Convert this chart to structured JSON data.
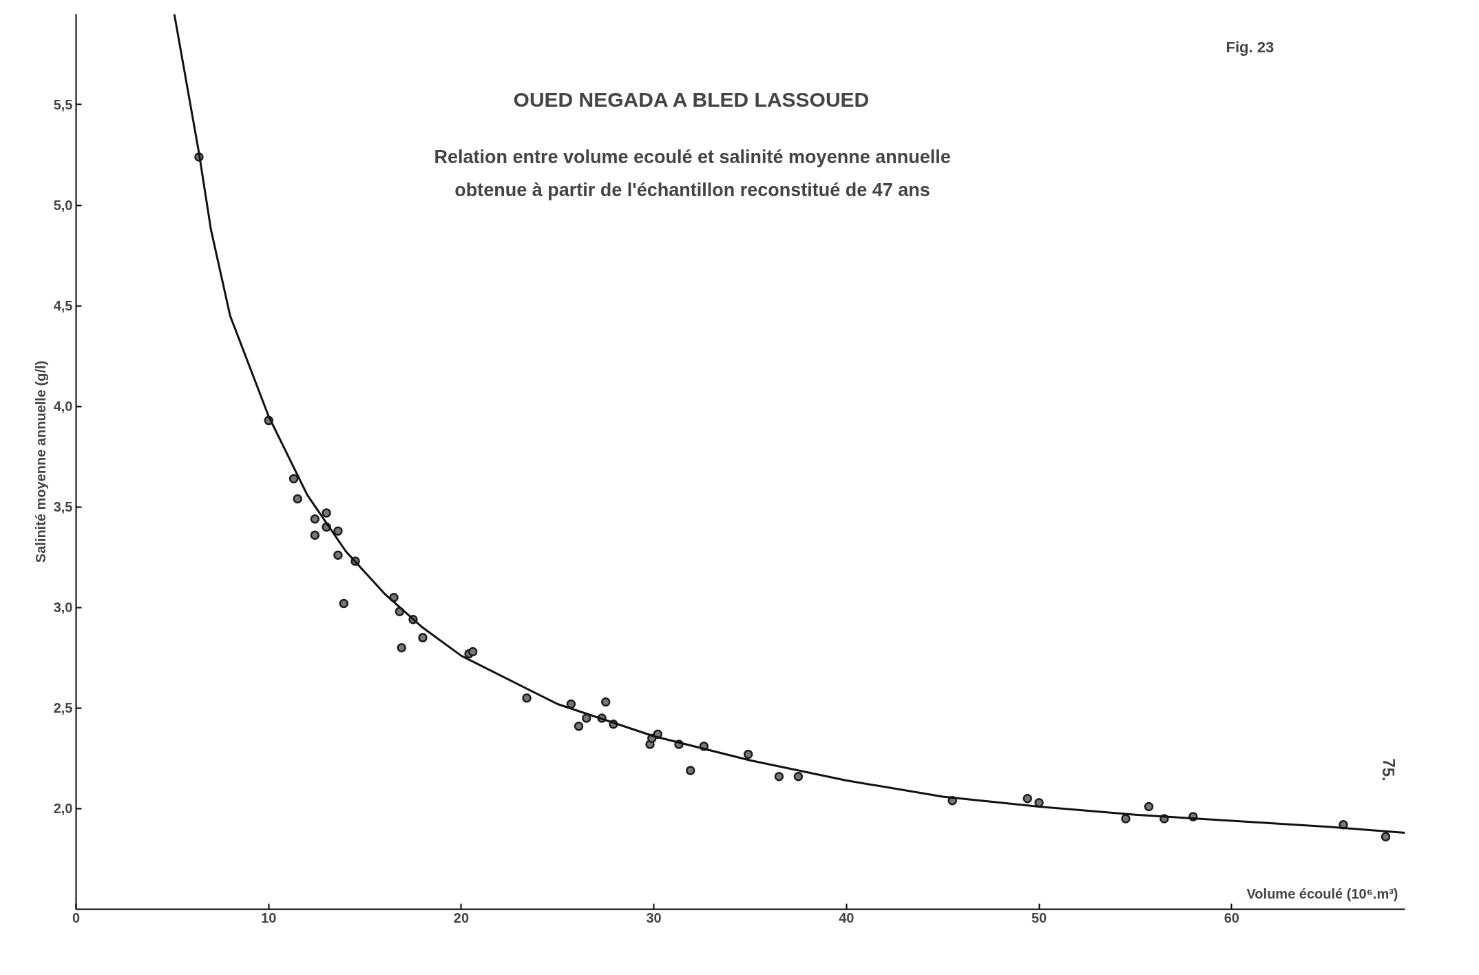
{
  "chart_data": {
    "type": "scatter",
    "title": "OUED NEGADA A BLED LASSOUED",
    "subtitle": "Relation entre volume ecoulé et salinité moyenne annuelle\nobtenue à partir de l'échantillon reconstitué de 47 ans",
    "xlabel": "Volume écoulé (10⁶.m³)",
    "ylabel": "Salinité moyenne annuelle (g/l)",
    "annotations": [
      "Fig. 23",
      "75."
    ],
    "xlim": [
      0,
      69
    ],
    "ylim": [
      1.5,
      5.95
    ],
    "xticks": [
      0,
      10,
      20,
      30,
      40,
      50,
      60
    ],
    "yticks": [
      {
        "value": 2.0,
        "label": "2,0"
      },
      {
        "value": 2.5,
        "label": "2,5"
      },
      {
        "value": 3.0,
        "label": "3,0"
      },
      {
        "value": 3.5,
        "label": "3,5"
      },
      {
        "value": 4.0,
        "label": "4,0"
      },
      {
        "value": 4.5,
        "label": "4,5"
      },
      {
        "value": 5.0,
        "label": "5,0"
      },
      {
        "value": 5.5,
        "label": "5,5"
      }
    ],
    "grid": false,
    "marker": "circle",
    "series": [
      {
        "color": "#1a1a1a",
        "x": [
          6.38,
          10.0,
          11.3,
          11.5,
          12.4,
          12.4,
          13.0,
          13.0,
          13.6,
          13.6,
          14.5,
          13.9,
          16.5,
          16.8,
          17.5,
          16.9,
          18.0,
          20.4,
          20.6,
          23.4,
          25.7,
          26.1,
          26.5,
          27.3,
          27.5,
          27.9,
          29.8,
          29.9,
          30.2,
          31.3,
          31.9,
          32.6,
          34.9,
          36.5,
          37.5,
          45.5,
          49.4,
          50.0,
          54.5,
          55.7,
          56.5,
          58.0,
          65.8,
          68.0
        ],
        "values": [
          5.24,
          3.93,
          3.64,
          3.54,
          3.44,
          3.36,
          3.47,
          3.4,
          3.38,
          3.26,
          3.23,
          3.02,
          3.05,
          2.98,
          2.94,
          2.8,
          2.85,
          2.77,
          2.78,
          2.55,
          2.52,
          2.41,
          2.45,
          2.45,
          2.53,
          2.42,
          2.32,
          2.35,
          2.37,
          2.32,
          2.19,
          2.31,
          2.27,
          2.16,
          2.16,
          2.04,
          2.05,
          2.03,
          1.95,
          2.01,
          1.95,
          1.96,
          1.92,
          1.86
        ]
      },
      {
        "type": "line",
        "marker": "none",
        "color": "#111111",
        "x": [
          5.1,
          6.38,
          7,
          8,
          10,
          12,
          14,
          16,
          18,
          20,
          25,
          30,
          35,
          40,
          45,
          50,
          55,
          60,
          65,
          69
        ],
        "values": [
          5.95,
          5.26,
          4.88,
          4.45,
          3.95,
          3.56,
          3.28,
          3.07,
          2.9,
          2.76,
          2.52,
          2.36,
          2.24,
          2.14,
          2.06,
          2.01,
          1.97,
          1.94,
          1.91,
          1.88
        ]
      }
    ]
  }
}
